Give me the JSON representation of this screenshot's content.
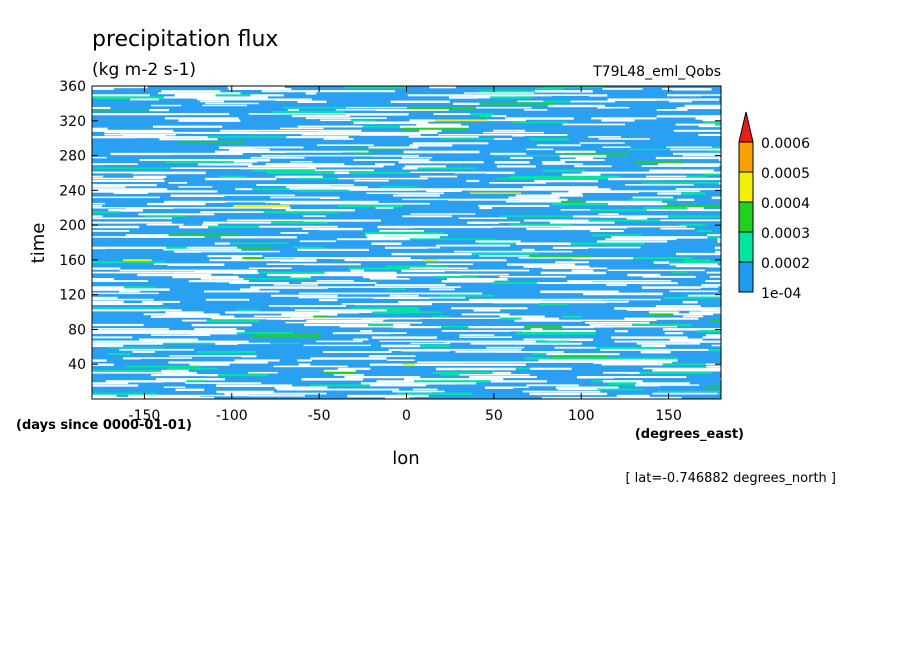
{
  "chart_data": {
    "type": "heatmap",
    "title": "precipitation flux",
    "units": "(kg m-2 s-1)",
    "dataset": "T79L48_eml_Qobs",
    "xlabel": "lon",
    "x_units": "(degrees_east)",
    "ylabel": "time",
    "y_units": "(days since 0000-01-01)",
    "footnote": "[ lat=-0.746882 degrees_north ]",
    "xlim": [
      -180,
      180
    ],
    "ylim": [
      0,
      360
    ],
    "x_ticks": [
      -150,
      -100,
      -50,
      0,
      50,
      100,
      150
    ],
    "x_tick_labels": [
      "-150",
      "-100",
      "-50",
      "0",
      "50",
      "100",
      "150"
    ],
    "y_ticks": [
      40,
      80,
      120,
      160,
      200,
      240,
      280,
      320,
      360
    ],
    "y_tick_labels": [
      "40",
      "80",
      "120",
      "160",
      "200",
      "240",
      "280",
      "320",
      "360"
    ],
    "color_levels": [
      0.0001,
      0.0002,
      0.0003,
      0.0004,
      0.0005,
      0.0006
    ],
    "colorbar_labels": [
      "1e-04",
      "0.0002",
      "0.0003",
      "0.0004",
      "0.0005",
      "0.0006"
    ],
    "colorbar_colors": [
      "#1E9BF0",
      "#00E6A0",
      "#1ED21E",
      "#F0F000",
      "#FAA000",
      "#E61E1E"
    ],
    "colorbar_extend": "max",
    "grid": false
  }
}
